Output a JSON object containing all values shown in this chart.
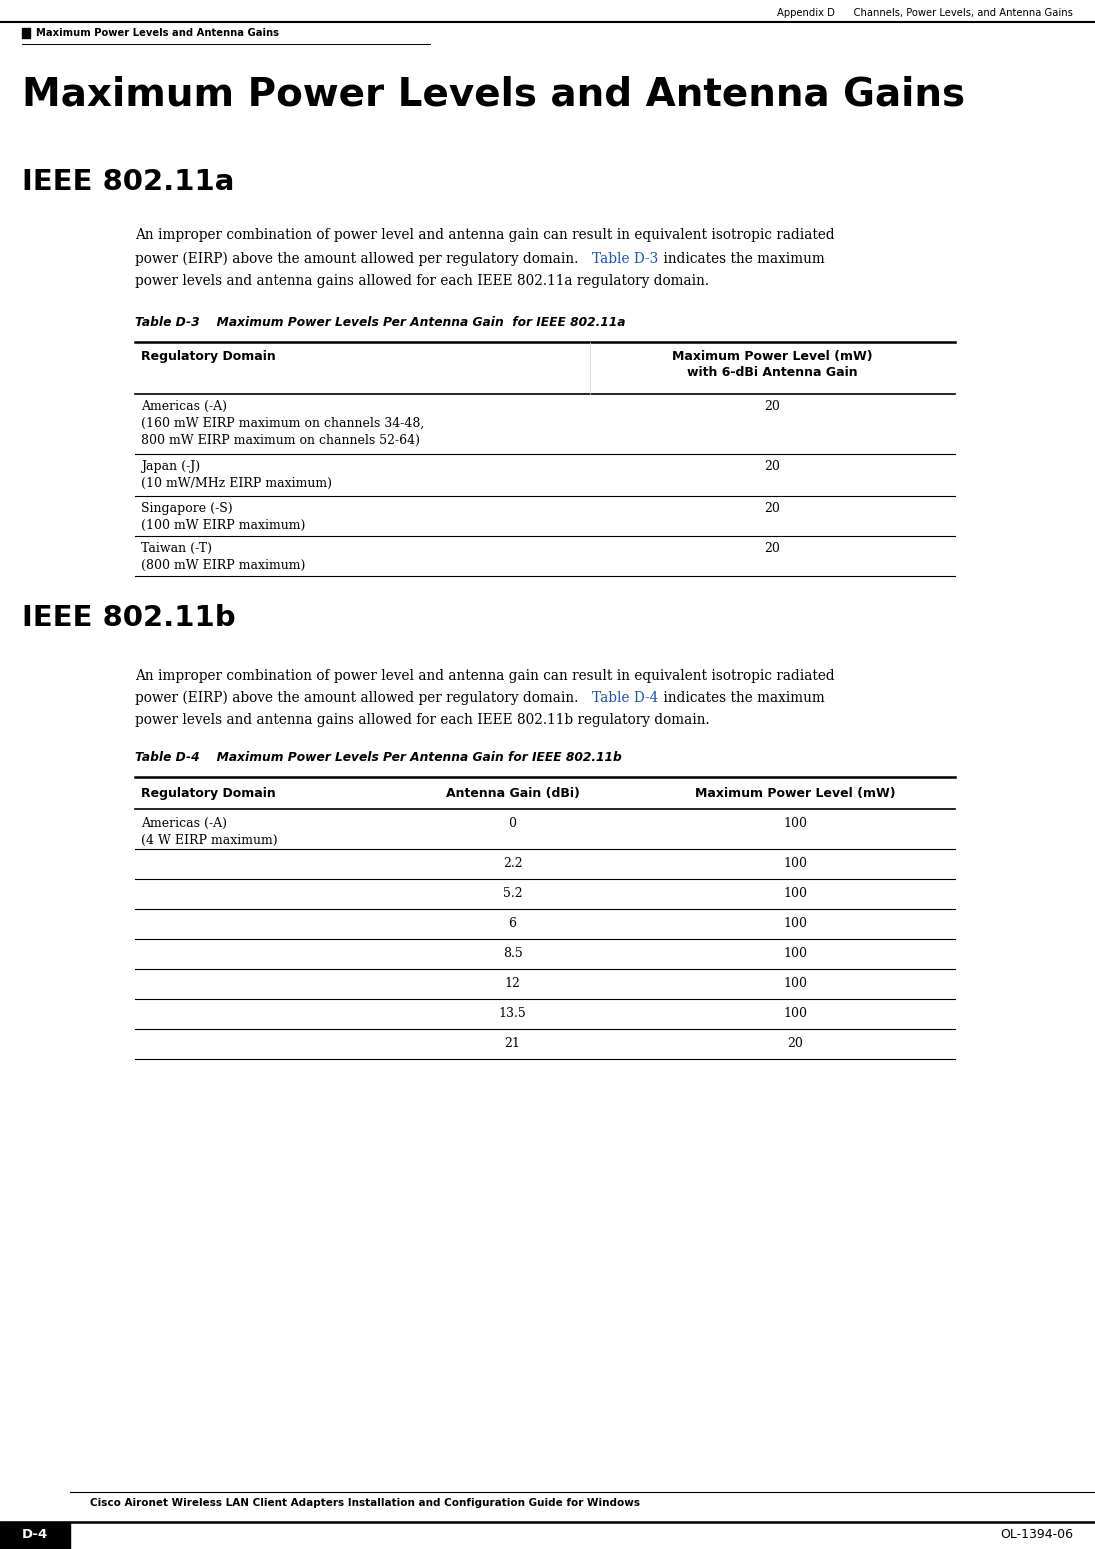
{
  "page_width": 10.95,
  "page_height": 15.49,
  "dpi": 100,
  "bg_color": "#ffffff",
  "header_text_right": "Appendix D      Channels, Power Levels, and Antenna Gains",
  "header_text_left": "Maximum Power Levels and Antenna Gains",
  "footer_text_center": "Cisco Aironet Wireless LAN Client Adapters Installation and Configuration Guide for Windows",
  "footer_left": "D-4",
  "footer_right": "OL-1394-06",
  "main_title": "Maximum Power Levels and Antenna Gains",
  "section1_title": "IEEE 802.11a",
  "section1_body1": "An improper combination of power level and antenna gain can result in equivalent isotropic radiated",
  "section1_body2_pre": "power (EIRP) above the amount allowed per regulatory domain. ",
  "section1_body2_link": "Table D-3",
  "section1_body2_post": " indicates the maximum",
  "section1_body3": "power levels and antenna gains allowed for each IEEE 802.11a regulatory domain.",
  "table1_title": "Table D-3    Maximum Power Levels Per Antenna Gain  for IEEE 802.11a",
  "table1_col1_header": "Regulatory Domain",
  "table1_col2_header_line1": "Maximum Power Level (mW)",
  "table1_col2_header_line2": "with 6-dBi Antenna Gain",
  "table1_rows": [
    [
      "Americas (-A)\n(160 mW EIRP maximum on channels 34-48,\n800 mW EIRP maximum on channels 52-64)",
      "20"
    ],
    [
      "Japan (-J)\n(10 mW/MHz EIRP maximum)",
      "20"
    ],
    [
      "Singapore (-S)\n(100 mW EIRP maximum)",
      "20"
    ],
    [
      "Taiwan (-T)\n(800 mW EIRP maximum)",
      "20"
    ]
  ],
  "section2_title": "IEEE 802.11b",
  "section2_body1": "An improper combination of power level and antenna gain can result in equivalent isotropic radiated",
  "section2_body2_pre": "power (EIRP) above the amount allowed per regulatory domain. ",
  "section2_body2_link": "Table D-4",
  "section2_body2_post": " indicates the maximum",
  "section2_body3": "power levels and antenna gains allowed for each IEEE 802.11b regulatory domain.",
  "table2_title": "Table D-4    Maximum Power Levels Per Antenna Gain for IEEE 802.11b",
  "table2_col1_header": "Regulatory Domain",
  "table2_col2_header": "Antenna Gain (dBi)",
  "table2_col3_header": "Maximum Power Level (mW)",
  "table2_rows": [
    [
      "Americas (-A)\n(4 W EIRP maximum)",
      "0",
      "100"
    ],
    [
      "",
      "2.2",
      "100"
    ],
    [
      "",
      "5.2",
      "100"
    ],
    [
      "",
      "6",
      "100"
    ],
    [
      "",
      "8.5",
      "100"
    ],
    [
      "",
      "12",
      "100"
    ],
    [
      "",
      "13.5",
      "100"
    ],
    [
      "",
      "21",
      "20"
    ]
  ],
  "link_color": "#1a4fc4",
  "text_color": "#000000"
}
